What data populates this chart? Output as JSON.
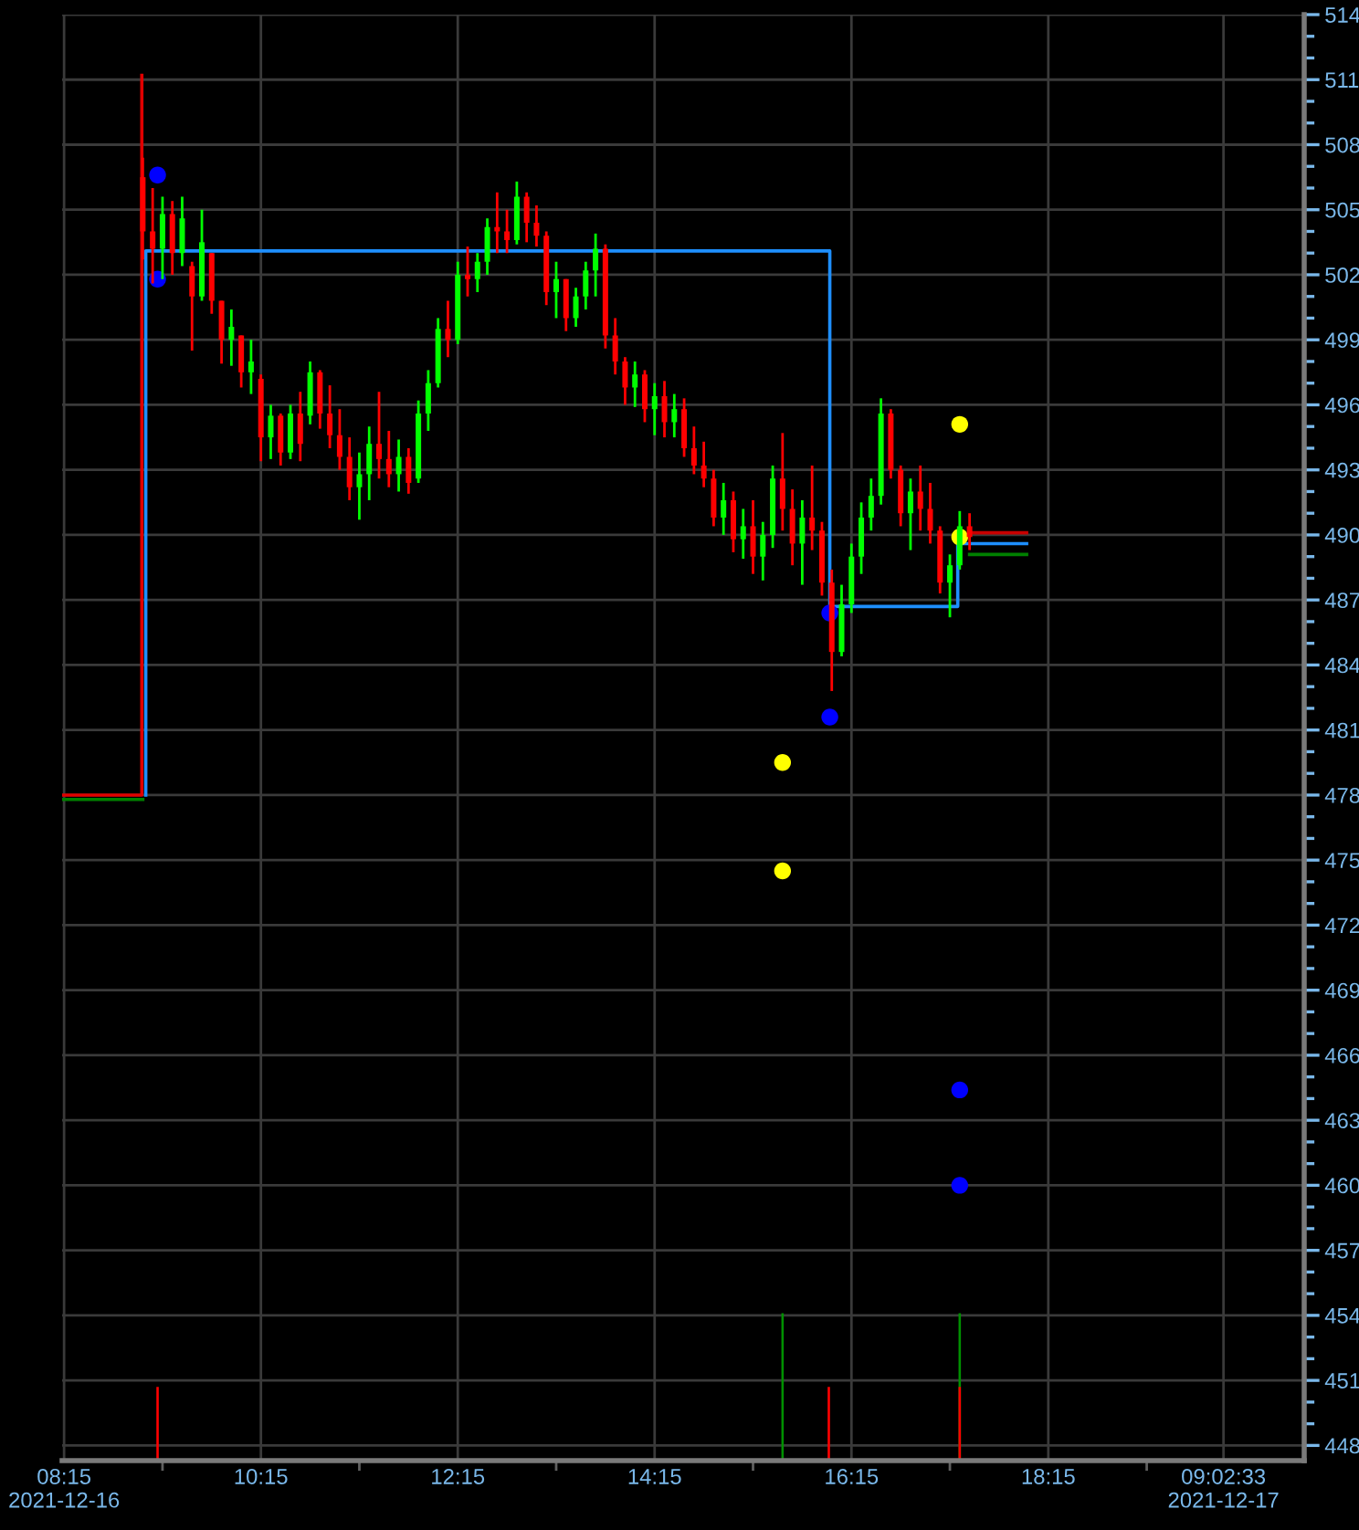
{
  "chart_data": {
    "type": "candlestick",
    "x": [
      9.05,
      9.15,
      9.25,
      9.35,
      9.45,
      9.55,
      9.65,
      9.75,
      9.85,
      9.95,
      10.05,
      10.15,
      10.25,
      10.35,
      10.45,
      10.55,
      10.65,
      10.75,
      10.85,
      10.95,
      11.05,
      11.15,
      11.25,
      11.35,
      11.45,
      11.55,
      11.65,
      11.75,
      11.85,
      11.95,
      12.05,
      12.15,
      12.25,
      12.35,
      12.45,
      12.55,
      12.65,
      12.75,
      12.85,
      12.95,
      13.05,
      13.15,
      13.25,
      13.35,
      13.45,
      13.55,
      13.65,
      13.75,
      13.85,
      13.95,
      14.05,
      14.15,
      14.25,
      14.35,
      14.45,
      14.55,
      14.65,
      14.75,
      14.85,
      14.95,
      15.05,
      15.15,
      15.25,
      15.35,
      15.45,
      15.55,
      15.65,
      15.75,
      15.85,
      15.95,
      16.05,
      16.15,
      16.25,
      16.35,
      16.45,
      16.55,
      16.65,
      16.75,
      16.85,
      16.95,
      17.05,
      17.15,
      17.25,
      17.35,
      17.45
    ],
    "ohlc": [
      [
        506.5,
        507.4,
        502.7,
        504.0
      ],
      [
        504.0,
        506.0,
        501.6,
        503.2
      ],
      [
        503.2,
        505.6,
        501.8,
        504.8
      ],
      [
        504.8,
        505.4,
        502.0,
        503.0
      ],
      [
        503.0,
        505.6,
        502.4,
        504.6
      ],
      [
        502.4,
        502.6,
        498.5,
        501.0
      ],
      [
        501.0,
        505.0,
        500.8,
        503.5
      ],
      [
        503.0,
        503.0,
        500.2,
        500.8
      ],
      [
        500.8,
        500.8,
        497.9,
        499.0
      ],
      [
        499.0,
        500.4,
        497.8,
        499.6
      ],
      [
        499.2,
        499.2,
        496.8,
        497.5
      ],
      [
        497.5,
        499.0,
        496.5,
        498.0
      ],
      [
        497.2,
        497.4,
        493.4,
        494.5
      ],
      [
        494.5,
        496.0,
        493.5,
        495.5
      ],
      [
        495.5,
        495.6,
        493.2,
        493.8
      ],
      [
        493.8,
        496.0,
        493.5,
        495.6
      ],
      [
        495.6,
        496.6,
        493.4,
        494.2
      ],
      [
        495.5,
        498.0,
        495.1,
        497.5
      ],
      [
        497.5,
        497.6,
        494.9,
        495.6
      ],
      [
        495.6,
        496.9,
        494.0,
        494.6
      ],
      [
        494.6,
        495.8,
        493.0,
        493.6
      ],
      [
        493.6,
        494.5,
        491.6,
        492.2
      ],
      [
        492.2,
        493.8,
        490.7,
        492.8
      ],
      [
        492.8,
        495.0,
        491.6,
        494.2
      ],
      [
        494.2,
        496.6,
        492.6,
        493.5
      ],
      [
        493.5,
        494.8,
        492.2,
        492.8
      ],
      [
        492.8,
        494.4,
        492.0,
        493.6
      ],
      [
        493.6,
        494.0,
        491.9,
        492.4
      ],
      [
        492.6,
        496.2,
        492.4,
        495.6
      ],
      [
        495.6,
        497.6,
        494.8,
        497.0
      ],
      [
        497.0,
        500.0,
        496.8,
        499.5
      ],
      [
        499.5,
        500.8,
        498.2,
        499.0
      ],
      [
        499.0,
        502.6,
        498.8,
        502.0
      ],
      [
        502.0,
        503.3,
        501.0,
        501.8
      ],
      [
        501.8,
        503.0,
        501.2,
        502.6
      ],
      [
        502.6,
        504.6,
        502.0,
        504.2
      ],
      [
        504.2,
        505.8,
        503.0,
        504.0
      ],
      [
        504.0,
        505.0,
        503.0,
        503.6
      ],
      [
        503.6,
        506.3,
        503.4,
        505.6
      ],
      [
        505.6,
        505.8,
        503.5,
        504.4
      ],
      [
        504.4,
        505.2,
        503.3,
        503.8
      ],
      [
        503.8,
        504.0,
        500.6,
        501.2
      ],
      [
        501.2,
        502.6,
        500.0,
        501.8
      ],
      [
        501.8,
        501.8,
        499.4,
        500.0
      ],
      [
        500.0,
        501.4,
        499.6,
        501.0
      ],
      [
        501.0,
        502.6,
        500.4,
        502.2
      ],
      [
        502.2,
        503.9,
        501.0,
        503.2
      ],
      [
        503.2,
        503.4,
        498.6,
        499.2
      ],
      [
        499.2,
        500.0,
        497.4,
        498.0
      ],
      [
        498.0,
        498.2,
        496.0,
        496.8
      ],
      [
        496.8,
        498.0,
        495.9,
        497.4
      ],
      [
        497.4,
        497.6,
        495.2,
        495.8
      ],
      [
        495.8,
        497.0,
        494.6,
        496.4
      ],
      [
        496.4,
        497.1,
        494.5,
        495.2
      ],
      [
        495.2,
        496.5,
        494.5,
        495.8
      ],
      [
        495.8,
        496.3,
        493.6,
        494.0
      ],
      [
        494.0,
        495.0,
        492.8,
        493.2
      ],
      [
        493.2,
        494.3,
        492.2,
        492.6
      ],
      [
        492.6,
        493.0,
        490.4,
        490.8
      ],
      [
        490.8,
        492.4,
        490.0,
        491.6
      ],
      [
        491.6,
        492.0,
        489.2,
        489.8
      ],
      [
        489.8,
        491.2,
        488.9,
        490.4
      ],
      [
        490.4,
        491.6,
        488.2,
        489.0
      ],
      [
        489.0,
        490.6,
        487.9,
        490.0
      ],
      [
        490.0,
        493.2,
        489.4,
        492.6
      ],
      [
        492.6,
        494.7,
        490.2,
        491.2
      ],
      [
        491.2,
        492.1,
        488.6,
        489.6
      ],
      [
        489.6,
        491.6,
        487.7,
        490.8
      ],
      [
        490.8,
        493.2,
        489.3,
        490.2
      ],
      [
        490.2,
        490.6,
        487.2,
        487.8
      ],
      [
        487.8,
        488.4,
        482.8,
        484.6
      ],
      [
        484.6,
        487.7,
        484.4,
        486.8
      ],
      [
        486.8,
        489.6,
        486.4,
        489.0
      ],
      [
        489.0,
        491.5,
        488.2,
        490.8
      ],
      [
        490.8,
        492.6,
        490.2,
        491.8
      ],
      [
        491.8,
        496.3,
        491.4,
        495.6
      ],
      [
        495.6,
        495.8,
        492.6,
        493.0
      ],
      [
        493.0,
        493.2,
        490.4,
        491.0
      ],
      [
        491.0,
        492.6,
        489.3,
        492.0
      ],
      [
        492.0,
        493.2,
        490.2,
        491.2
      ],
      [
        491.2,
        492.4,
        489.6,
        490.2
      ],
      [
        490.2,
        490.4,
        487.3,
        487.8
      ],
      [
        487.8,
        489.1,
        486.2,
        488.6
      ],
      [
        488.6,
        491.1,
        488.4,
        490.4
      ],
      [
        490.4,
        491.0,
        489.3,
        489.9
      ]
    ],
    "colors": [
      "#ff0000",
      "#ff0000",
      "#00ff00",
      "#ff0000",
      "#00ff00",
      "#ff0000",
      "#00ff00",
      "#ff0000",
      "#ff0000",
      "#00ff00",
      "#ff0000",
      "#00ff00",
      "#ff0000",
      "#00ff00",
      "#ff0000",
      "#00ff00",
      "#ff0000",
      "#00ff00",
      "#ff0000",
      "#ff0000",
      "#ff0000",
      "#ff0000",
      "#00ff00",
      "#00ff00",
      "#ff0000",
      "#ff0000",
      "#00ff00",
      "#ff0000",
      "#00ff00",
      "#00ff00",
      "#00ff00",
      "#ff0000",
      "#00ff00",
      "#ff0000",
      "#00ff00",
      "#00ff00",
      "#ff0000",
      "#ff0000",
      "#00ff00",
      "#ff0000",
      "#ff0000",
      "#ff0000",
      "#00ff00",
      "#ff0000",
      "#00ff00",
      "#00ff00",
      "#00ff00",
      "#ff0000",
      "#ff0000",
      "#ff0000",
      "#00ff00",
      "#ff0000",
      "#00ff00",
      "#ff0000",
      "#00ff00",
      "#ff0000",
      "#ff0000",
      "#ff0000",
      "#ff0000",
      "#00ff00",
      "#ff0000",
      "#00ff00",
      "#ff0000",
      "#00ff00",
      "#00ff00",
      "#ff0000",
      "#ff0000",
      "#00ff00",
      "#ff0000",
      "#ff0000",
      "#ff0000",
      "#00ff00",
      "#00ff00",
      "#00ff00",
      "#00ff00",
      "#00ff00",
      "#ff0000",
      "#ff0000",
      "#00ff00",
      "#ff0000",
      "#ff0000",
      "#ff0000",
      "#00ff00",
      "#00ff00",
      "#ff0000"
    ],
    "series": [
      {
        "type": "bar",
        "color": "#009000",
        "x": [
          15.55,
          17.35
        ],
        "values": [
          6.8,
          6.8
        ],
        "base": [
          447.3,
          447.3
        ]
      },
      {
        "type": "bar",
        "color": "#ff0000",
        "x": [
          9.2,
          16.02,
          17.35
        ],
        "values": [
          3.4,
          3.4,
          3.4
        ],
        "base": [
          447.3,
          447.3,
          447.3
        ]
      },
      {
        "type": "line",
        "color": "#1e8fff",
        "x": [
          9.08,
          9.08,
          16.03,
          16.03,
          17.33,
          17.33,
          18.03
        ],
        "values": [
          478.0,
          503.1,
          503.1,
          486.7,
          486.7,
          489.6,
          489.6
        ]
      },
      {
        "type": "line",
        "color": "#008000",
        "x": [
          8.23,
          9.05
        ],
        "values": [
          477.8,
          477.8
        ]
      },
      {
        "type": "line",
        "color": "#e00000",
        "x": [
          8.23,
          9.04,
          9.04
        ],
        "values": [
          478.0,
          478.0,
          511.2
        ]
      },
      {
        "type": "line",
        "color": "#c80000",
        "x": [
          17.45,
          18.03
        ],
        "values": [
          490.1,
          490.1
        ]
      },
      {
        "type": "line",
        "color": "#008000",
        "x": [
          17.45,
          18.03
        ],
        "values": [
          489.1,
          489.1
        ]
      },
      {
        "type": "scatter",
        "color": "#0000ff",
        "marker": "circle",
        "x": [
          9.2,
          9.2,
          16.03,
          16.03,
          17.35,
          17.35
        ],
        "values": [
          506.6,
          501.8,
          486.4,
          481.6,
          464.4,
          460.0
        ]
      },
      {
        "type": "scatter",
        "color": "#ffff00",
        "marker": "circle",
        "x": [
          15.55,
          15.55,
          17.35,
          17.35
        ],
        "values": [
          479.5,
          474.5,
          495.1,
          489.9
        ]
      }
    ],
    "xlim": [
      8.23,
      20.85
    ],
    "xticks": [
      {
        "value": 8.25,
        "label": "08:15\n2021-12-16"
      },
      {
        "value": 10.25,
        "label": "10:15"
      },
      {
        "value": 12.25,
        "label": "12:15"
      },
      {
        "value": 14.25,
        "label": "14:15"
      },
      {
        "value": 16.25,
        "label": "16:15"
      },
      {
        "value": 18.25,
        "label": "18:15"
      },
      {
        "value": 20.03,
        "label": "09:02:33\n2021-12-17"
      }
    ],
    "ylim": [
      447.3,
      514.0
    ],
    "yticks": [
      448,
      451,
      454,
      457,
      460,
      463,
      466,
      469,
      472,
      475,
      478,
      481,
      484,
      487,
      490,
      493,
      496,
      499,
      502,
      505,
      508,
      511,
      514
    ],
    "grid": true
  }
}
